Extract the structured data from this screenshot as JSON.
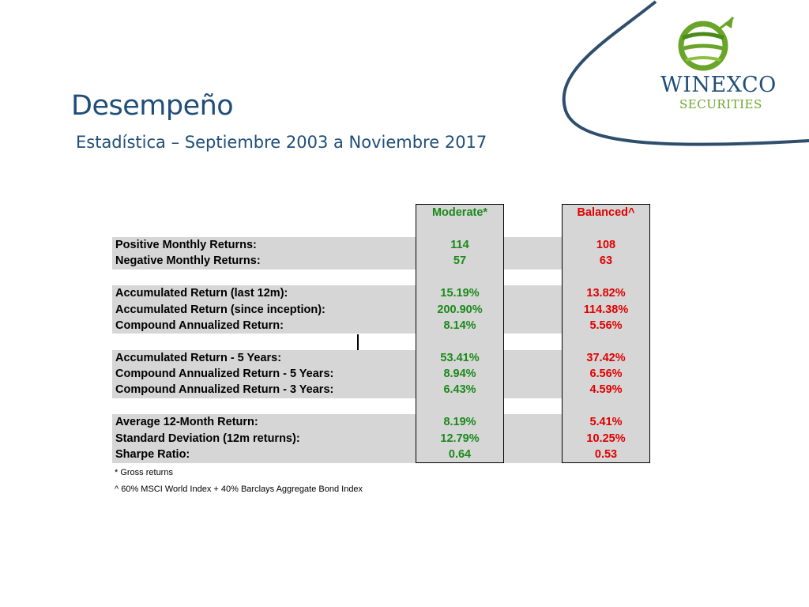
{
  "slide": {
    "title": "Desempeño",
    "subtitle": "Estadística – Septiembre 2003 a Noviembre 2017"
  },
  "logo": {
    "word": "WINEXCO",
    "sub": "SECURITIES",
    "colors": {
      "blue": "#1f4e79",
      "green": "#6aa52a"
    }
  },
  "table": {
    "headers": {
      "moderate": "Moderate*",
      "balanced": "Balanced^"
    },
    "rows": [
      {
        "label": "Positive Monthly Returns:",
        "moderate": "114",
        "balanced": "108"
      },
      {
        "label": "Negative Monthly Returns:",
        "moderate": "57",
        "balanced": "63"
      },
      {
        "label": "Accumulated Return (last 12m):",
        "moderate": "15.19%",
        "balanced": "13.82%"
      },
      {
        "label": "Accumulated Return (since inception):",
        "moderate": "200.90%",
        "balanced": "114.38%"
      },
      {
        "label": "Compound Annualized Return:",
        "moderate": "8.14%",
        "balanced": "5.56%"
      },
      {
        "label": "Accumulated Return - 5 Years:",
        "moderate": "53.41%",
        "balanced": "37.42%"
      },
      {
        "label": "Compound Annualized Return - 5 Years:",
        "moderate": "8.94%",
        "balanced": "6.56%"
      },
      {
        "label": "Compound Annualized Return - 3 Years:",
        "moderate": "6.43%",
        "balanced": "4.59%"
      },
      {
        "label": "Average 12-Month Return:",
        "moderate": "8.19%",
        "balanced": "5.41%"
      },
      {
        "label": "Standard Deviation (12m returns):",
        "moderate": "12.79%",
        "balanced": "10.25%"
      },
      {
        "label": "Sharpe Ratio:",
        "moderate": "0.64",
        "balanced": "0.53"
      }
    ],
    "colors": {
      "moderate": "#1a8a1a",
      "balanced": "#e00000",
      "stripe": "#d6d6d6"
    }
  },
  "notes": {
    "gross": "* Gross returns",
    "benchmark": "^ 60% MSCI World Index + 40% Barclays Aggregate Bond Index"
  }
}
